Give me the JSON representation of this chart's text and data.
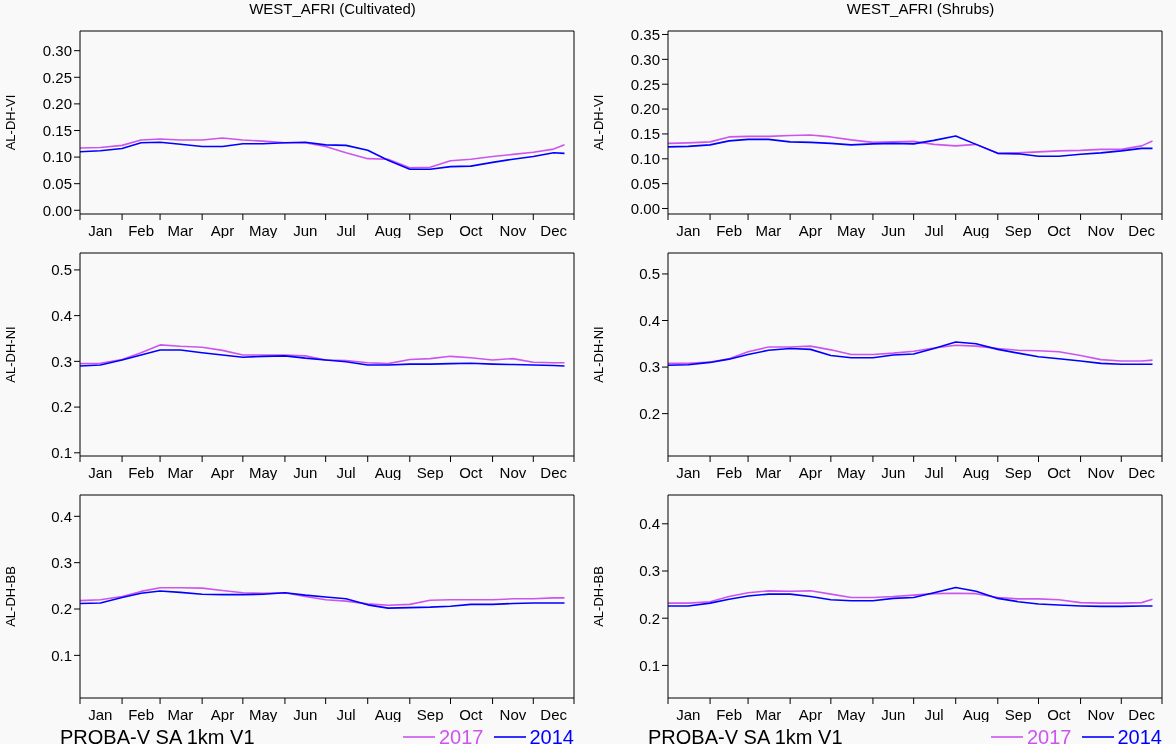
{
  "chart_data": [
    {
      "type": "line",
      "title": "WEST_AFRI (Cultivated)",
      "ylabel": "AL-DH-VI",
      "x": [
        "--01-01",
        "--01-16",
        "--02-01",
        "--02-15",
        "--03-01",
        "--03-16",
        "--04-01",
        "--04-16",
        "--05-01",
        "--05-16",
        "--06-01",
        "--06-16",
        "--07-01",
        "--07-16",
        "--08-01",
        "--08-16",
        "--09-01",
        "--09-16",
        "--10-01",
        "--10-16",
        "--11-01",
        "--11-16",
        "--12-01",
        "--12-16",
        "--12-24"
      ],
      "xlim": [
        "--01-01",
        "--12-31"
      ],
      "xticks": [
        {
          "value": "--01-01",
          "label": null
        },
        {
          "value": "--01-16",
          "label": "Jan"
        },
        {
          "value": "--02-01",
          "label": null
        },
        {
          "value": "--02-15",
          "label": "Feb"
        },
        {
          "value": "--03-01",
          "label": null
        },
        {
          "value": "--03-16",
          "label": "Mar"
        },
        {
          "value": "--04-01",
          "label": null
        },
        {
          "value": "--04-16",
          "label": "Apr"
        },
        {
          "value": "--05-01",
          "label": null
        },
        {
          "value": "--05-16",
          "label": "May"
        },
        {
          "value": "--06-01",
          "label": null
        },
        {
          "value": "--06-16",
          "label": "Jun"
        },
        {
          "value": "--07-01",
          "label": null
        },
        {
          "value": "--07-16",
          "label": "Jul"
        },
        {
          "value": "--08-01",
          "label": null
        },
        {
          "value": "--08-16",
          "label": "Aug"
        },
        {
          "value": "--09-01",
          "label": null
        },
        {
          "value": "--09-16",
          "label": "Sep"
        },
        {
          "value": "--10-01",
          "label": null
        },
        {
          "value": "--10-16",
          "label": "Oct"
        },
        {
          "value": "--11-01",
          "label": null
        },
        {
          "value": "--11-16",
          "label": "Nov"
        },
        {
          "value": "--12-01",
          "label": null
        },
        {
          "value": "--12-16",
          "label": "Dec"
        },
        {
          "value": "--12-31",
          "label": null
        }
      ],
      "ylim": [
        -0.007,
        0.337
      ],
      "yticks": [
        {
          "value": 0,
          "label": "0.00"
        },
        {
          "value": 0.05,
          "label": "0.05"
        },
        {
          "value": 0.1,
          "label": "0.10"
        },
        {
          "value": 0.15,
          "label": "0.15"
        },
        {
          "value": 0.2,
          "label": "0.20"
        },
        {
          "value": 0.25,
          "label": "0.25"
        },
        {
          "value": 0.3,
          "label": "0.30"
        }
      ],
      "series": [
        {
          "color": "#cc55ee",
          "values": [
            0.117,
            0.118,
            0.122,
            0.132,
            0.134,
            0.132,
            0.132,
            0.136,
            0.132,
            0.13,
            0.127,
            0.127,
            0.12,
            0.108,
            0.097,
            0.096,
            0.08,
            0.081,
            0.093,
            0.096,
            0.101,
            0.105,
            0.109,
            0.115,
            0.123
          ]
        },
        {
          "color": "#0000ff",
          "values": [
            0.11,
            0.112,
            0.116,
            0.127,
            0.128,
            0.124,
            0.12,
            0.12,
            0.125,
            0.125,
            0.127,
            0.128,
            0.123,
            0.122,
            0.113,
            0.094,
            0.077,
            0.077,
            0.082,
            0.083,
            0.09,
            0.096,
            0.101,
            0.108,
            0.107
          ]
        }
      ]
    },
    {
      "type": "line",
      "title": "WEST_AFRI (Shrubs)",
      "ylabel": "AL-DH-VI",
      "x": [
        "--01-01",
        "--01-16",
        "--02-01",
        "--02-15",
        "--03-01",
        "--03-16",
        "--04-01",
        "--04-16",
        "--05-01",
        "--05-16",
        "--06-01",
        "--06-16",
        "--07-01",
        "--07-16",
        "--08-01",
        "--08-16",
        "--09-01",
        "--09-16",
        "--10-01",
        "--10-16",
        "--11-01",
        "--11-16",
        "--12-01",
        "--12-16",
        "--12-24"
      ],
      "xlim": [
        "--01-01",
        "--12-31"
      ],
      "xticks": [
        {
          "value": "--01-01",
          "label": null
        },
        {
          "value": "--01-16",
          "label": "Jan"
        },
        {
          "value": "--02-01",
          "label": null
        },
        {
          "value": "--02-15",
          "label": "Feb"
        },
        {
          "value": "--03-01",
          "label": null
        },
        {
          "value": "--03-16",
          "label": "Mar"
        },
        {
          "value": "--04-01",
          "label": null
        },
        {
          "value": "--04-16",
          "label": "Apr"
        },
        {
          "value": "--05-01",
          "label": null
        },
        {
          "value": "--05-16",
          "label": "May"
        },
        {
          "value": "--06-01",
          "label": null
        },
        {
          "value": "--06-16",
          "label": "Jun"
        },
        {
          "value": "--07-01",
          "label": null
        },
        {
          "value": "--07-16",
          "label": "Jul"
        },
        {
          "value": "--08-01",
          "label": null
        },
        {
          "value": "--08-16",
          "label": "Aug"
        },
        {
          "value": "--09-01",
          "label": null
        },
        {
          "value": "--09-16",
          "label": "Sep"
        },
        {
          "value": "--10-01",
          "label": null
        },
        {
          "value": "--10-16",
          "label": "Oct"
        },
        {
          "value": "--11-01",
          "label": null
        },
        {
          "value": "--11-16",
          "label": "Nov"
        },
        {
          "value": "--12-01",
          "label": null
        },
        {
          "value": "--12-16",
          "label": "Dec"
        },
        {
          "value": "--12-31",
          "label": null
        }
      ],
      "ylim": [
        -0.011,
        0.357
      ],
      "yticks": [
        {
          "value": 0,
          "label": "0.00"
        },
        {
          "value": 0.05,
          "label": "0.05"
        },
        {
          "value": 0.1,
          "label": "0.10"
        },
        {
          "value": 0.15,
          "label": "0.15"
        },
        {
          "value": 0.2,
          "label": "0.20"
        },
        {
          "value": 0.25,
          "label": "0.25"
        },
        {
          "value": 0.3,
          "label": "0.30"
        },
        {
          "value": 0.35,
          "label": "0.35"
        }
      ],
      "series": [
        {
          "color": "#cc55ee",
          "values": [
            0.131,
            0.132,
            0.134,
            0.144,
            0.145,
            0.145,
            0.147,
            0.148,
            0.144,
            0.138,
            0.133,
            0.134,
            0.135,
            0.129,
            0.126,
            0.129,
            0.111,
            0.112,
            0.114,
            0.116,
            0.117,
            0.119,
            0.119,
            0.126,
            0.136
          ]
        },
        {
          "color": "#0000ff",
          "values": [
            0.124,
            0.125,
            0.128,
            0.136,
            0.139,
            0.139,
            0.134,
            0.133,
            0.131,
            0.128,
            0.13,
            0.131,
            0.13,
            0.137,
            0.146,
            0.129,
            0.111,
            0.11,
            0.105,
            0.105,
            0.109,
            0.112,
            0.116,
            0.121,
            0.121
          ]
        }
      ]
    },
    {
      "type": "line",
      "ylabel": "AL-DH-NI",
      "x": [
        "--01-01",
        "--01-16",
        "--02-01",
        "--02-15",
        "--03-01",
        "--03-16",
        "--04-01",
        "--04-16",
        "--05-01",
        "--05-16",
        "--06-01",
        "--06-16",
        "--07-01",
        "--07-16",
        "--08-01",
        "--08-16",
        "--09-01",
        "--09-16",
        "--10-01",
        "--10-16",
        "--11-01",
        "--11-16",
        "--12-01",
        "--12-16",
        "--12-24"
      ],
      "xlim": [
        "--01-01",
        "--12-31"
      ],
      "xticks": [
        {
          "value": "--01-01",
          "label": null
        },
        {
          "value": "--01-16",
          "label": "Jan"
        },
        {
          "value": "--02-01",
          "label": null
        },
        {
          "value": "--02-15",
          "label": "Feb"
        },
        {
          "value": "--03-01",
          "label": null
        },
        {
          "value": "--03-16",
          "label": "Mar"
        },
        {
          "value": "--04-01",
          "label": null
        },
        {
          "value": "--04-16",
          "label": "Apr"
        },
        {
          "value": "--05-01",
          "label": null
        },
        {
          "value": "--05-16",
          "label": "May"
        },
        {
          "value": "--06-01",
          "label": null
        },
        {
          "value": "--06-16",
          "label": "Jun"
        },
        {
          "value": "--07-01",
          "label": null
        },
        {
          "value": "--07-16",
          "label": "Jul"
        },
        {
          "value": "--08-01",
          "label": null
        },
        {
          "value": "--08-16",
          "label": "Aug"
        },
        {
          "value": "--09-01",
          "label": null
        },
        {
          "value": "--09-16",
          "label": "Sep"
        },
        {
          "value": "--10-01",
          "label": null
        },
        {
          "value": "--10-16",
          "label": "Oct"
        },
        {
          "value": "--11-01",
          "label": null
        },
        {
          "value": "--11-16",
          "label": "Nov"
        },
        {
          "value": "--12-01",
          "label": null
        },
        {
          "value": "--12-16",
          "label": "Dec"
        },
        {
          "value": "--12-31",
          "label": null
        }
      ],
      "ylim": [
        0.093,
        0.537
      ],
      "yticks": [
        0.1,
        0.2,
        0.3,
        0.4,
        0.5
      ],
      "series": [
        {
          "color": "#cc55ee",
          "values": [
            0.295,
            0.296,
            0.304,
            0.319,
            0.336,
            0.333,
            0.331,
            0.324,
            0.314,
            0.314,
            0.314,
            0.312,
            0.303,
            0.302,
            0.297,
            0.295,
            0.304,
            0.306,
            0.311,
            0.308,
            0.303,
            0.306,
            0.298,
            0.297,
            0.297
          ]
        },
        {
          "color": "#0000ff",
          "values": [
            0.29,
            0.292,
            0.303,
            0.314,
            0.325,
            0.325,
            0.319,
            0.314,
            0.309,
            0.311,
            0.312,
            0.307,
            0.303,
            0.299,
            0.292,
            0.292,
            0.294,
            0.294,
            0.295,
            0.296,
            0.294,
            0.293,
            0.292,
            0.291,
            0.29
          ]
        }
      ]
    },
    {
      "type": "line",
      "ylabel": "AL-DH-NI",
      "x": [
        "--01-01",
        "--01-16",
        "--02-01",
        "--02-15",
        "--03-01",
        "--03-16",
        "--04-01",
        "--04-16",
        "--05-01",
        "--05-16",
        "--06-01",
        "--06-16",
        "--07-01",
        "--07-16",
        "--08-01",
        "--08-16",
        "--09-01",
        "--09-16",
        "--10-01",
        "--10-16",
        "--11-01",
        "--11-16",
        "--12-01",
        "--12-16",
        "--12-24"
      ],
      "xlim": [
        "--01-01",
        "--12-31"
      ],
      "xticks": [
        {
          "value": "--01-01",
          "label": null
        },
        {
          "value": "--01-16",
          "label": "Jan"
        },
        {
          "value": "--02-01",
          "label": null
        },
        {
          "value": "--02-15",
          "label": "Feb"
        },
        {
          "value": "--03-01",
          "label": null
        },
        {
          "value": "--03-16",
          "label": "Mar"
        },
        {
          "value": "--04-01",
          "label": null
        },
        {
          "value": "--04-16",
          "label": "Apr"
        },
        {
          "value": "--05-01",
          "label": null
        },
        {
          "value": "--05-16",
          "label": "May"
        },
        {
          "value": "--06-01",
          "label": null
        },
        {
          "value": "--06-16",
          "label": "Jun"
        },
        {
          "value": "--07-01",
          "label": null
        },
        {
          "value": "--07-16",
          "label": "Jul"
        },
        {
          "value": "--08-01",
          "label": null
        },
        {
          "value": "--08-16",
          "label": "Aug"
        },
        {
          "value": "--09-01",
          "label": null
        },
        {
          "value": "--09-16",
          "label": "Sep"
        },
        {
          "value": "--10-01",
          "label": null
        },
        {
          "value": "--10-16",
          "label": "Oct"
        },
        {
          "value": "--11-01",
          "label": null
        },
        {
          "value": "--11-16",
          "label": "Nov"
        },
        {
          "value": "--12-01",
          "label": null
        },
        {
          "value": "--12-16",
          "label": "Dec"
        },
        {
          "value": "--12-31",
          "label": null
        }
      ],
      "ylim": [
        0.109,
        0.545
      ],
      "yticks": [
        0.2,
        0.3,
        0.4,
        0.5
      ],
      "series": [
        {
          "color": "#cc55ee",
          "values": [
            0.308,
            0.308,
            0.311,
            0.318,
            0.333,
            0.343,
            0.343,
            0.345,
            0.337,
            0.327,
            0.327,
            0.33,
            0.334,
            0.341,
            0.347,
            0.345,
            0.34,
            0.336,
            0.335,
            0.333,
            0.325,
            0.316,
            0.313,
            0.313,
            0.315
          ]
        },
        {
          "color": "#0000ff",
          "values": [
            0.304,
            0.305,
            0.31,
            0.317,
            0.327,
            0.336,
            0.34,
            0.338,
            0.325,
            0.32,
            0.32,
            0.326,
            0.328,
            0.34,
            0.354,
            0.35,
            0.338,
            0.33,
            0.322,
            0.318,
            0.313,
            0.308,
            0.306,
            0.306,
            0.306
          ]
        }
      ]
    },
    {
      "type": "line",
      "ylabel": "AL-DH-BB",
      "legend": "bottom right",
      "annotations": [
        "PROBA-V SA 1km V1"
      ],
      "x": [
        "--01-01",
        "--01-16",
        "--02-01",
        "--02-15",
        "--03-01",
        "--03-16",
        "--04-01",
        "--04-16",
        "--05-01",
        "--05-16",
        "--06-01",
        "--06-16",
        "--07-01",
        "--07-16",
        "--08-01",
        "--08-16",
        "--09-01",
        "--09-16",
        "--10-01",
        "--10-16",
        "--11-01",
        "--11-16",
        "--12-01",
        "--12-16",
        "--12-24"
      ],
      "xlim": [
        "--01-01",
        "--12-31"
      ],
      "xticks": [
        {
          "value": "--01-01",
          "label": null
        },
        {
          "value": "--01-16",
          "label": "Jan"
        },
        {
          "value": "--02-01",
          "label": null
        },
        {
          "value": "--02-15",
          "label": "Feb"
        },
        {
          "value": "--03-01",
          "label": null
        },
        {
          "value": "--03-16",
          "label": "Mar"
        },
        {
          "value": "--04-01",
          "label": null
        },
        {
          "value": "--04-16",
          "label": "Apr"
        },
        {
          "value": "--05-01",
          "label": null
        },
        {
          "value": "--05-16",
          "label": "May"
        },
        {
          "value": "--06-01",
          "label": null
        },
        {
          "value": "--06-16",
          "label": "Jun"
        },
        {
          "value": "--07-01",
          "label": null
        },
        {
          "value": "--07-16",
          "label": "Jul"
        },
        {
          "value": "--08-01",
          "label": null
        },
        {
          "value": "--08-16",
          "label": "Aug"
        },
        {
          "value": "--09-01",
          "label": null
        },
        {
          "value": "--09-16",
          "label": "Sep"
        },
        {
          "value": "--10-01",
          "label": null
        },
        {
          "value": "--10-16",
          "label": "Oct"
        },
        {
          "value": "--11-01",
          "label": null
        },
        {
          "value": "--11-16",
          "label": "Nov"
        },
        {
          "value": "--12-01",
          "label": null
        },
        {
          "value": "--12-16",
          "label": "Dec"
        },
        {
          "value": "--12-31",
          "label": null
        }
      ],
      "ylim": [
        0.008,
        0.446
      ],
      "yticks": [
        0.1,
        0.2,
        0.3,
        0.4
      ],
      "series": [
        {
          "name": "2017",
          "color": "#cc55ee",
          "values": [
            0.218,
            0.22,
            0.227,
            0.238,
            0.246,
            0.246,
            0.245,
            0.24,
            0.235,
            0.234,
            0.235,
            0.227,
            0.22,
            0.217,
            0.211,
            0.208,
            0.21,
            0.219,
            0.22,
            0.22,
            0.22,
            0.222,
            0.222,
            0.224,
            0.224
          ]
        },
        {
          "name": "2014",
          "color": "#0000ff",
          "values": [
            0.212,
            0.213,
            0.225,
            0.234,
            0.239,
            0.236,
            0.232,
            0.231,
            0.231,
            0.232,
            0.235,
            0.23,
            0.226,
            0.222,
            0.209,
            0.202,
            0.203,
            0.204,
            0.206,
            0.21,
            0.21,
            0.212,
            0.213,
            0.213,
            0.213
          ]
        }
      ]
    },
    {
      "type": "line",
      "ylabel": "AL-DH-BB",
      "legend": "bottom right",
      "annotations": [
        "PROBA-V SA 1km V1"
      ],
      "x": [
        "--01-01",
        "--01-16",
        "--02-01",
        "--02-15",
        "--03-01",
        "--03-16",
        "--04-01",
        "--04-16",
        "--05-01",
        "--05-16",
        "--06-01",
        "--06-16",
        "--07-01",
        "--07-16",
        "--08-01",
        "--08-16",
        "--09-01",
        "--09-16",
        "--10-01",
        "--10-16",
        "--11-01",
        "--11-16",
        "--12-01",
        "--12-16",
        "--12-24"
      ],
      "xlim": [
        "--01-01",
        "--12-31"
      ],
      "xticks": [
        {
          "value": "--01-01",
          "label": null
        },
        {
          "value": "--01-16",
          "label": "Jan"
        },
        {
          "value": "--02-01",
          "label": null
        },
        {
          "value": "--02-15",
          "label": "Feb"
        },
        {
          "value": "--03-01",
          "label": null
        },
        {
          "value": "--03-16",
          "label": "Mar"
        },
        {
          "value": "--04-01",
          "label": null
        },
        {
          "value": "--04-16",
          "label": "Apr"
        },
        {
          "value": "--05-01",
          "label": null
        },
        {
          "value": "--05-16",
          "label": "May"
        },
        {
          "value": "--06-01",
          "label": null
        },
        {
          "value": "--06-16",
          "label": "Jun"
        },
        {
          "value": "--07-01",
          "label": null
        },
        {
          "value": "--07-16",
          "label": "Jul"
        },
        {
          "value": "--08-01",
          "label": null
        },
        {
          "value": "--08-16",
          "label": "Aug"
        },
        {
          "value": "--09-01",
          "label": null
        },
        {
          "value": "--09-16",
          "label": "Sep"
        },
        {
          "value": "--10-01",
          "label": null
        },
        {
          "value": "--10-16",
          "label": "Oct"
        },
        {
          "value": "--11-01",
          "label": null
        },
        {
          "value": "--11-16",
          "label": "Nov"
        },
        {
          "value": "--12-01",
          "label": null
        },
        {
          "value": "--12-16",
          "label": "Dec"
        },
        {
          "value": "--12-31",
          "label": null
        }
      ],
      "ylim": [
        0.031,
        0.461
      ],
      "yticks": [
        0.1,
        0.2,
        0.3,
        0.4
      ],
      "series": [
        {
          "name": "2017",
          "color": "#cc55ee",
          "values": [
            0.232,
            0.232,
            0.235,
            0.246,
            0.254,
            0.258,
            0.257,
            0.258,
            0.251,
            0.244,
            0.244,
            0.246,
            0.249,
            0.252,
            0.253,
            0.252,
            0.244,
            0.241,
            0.241,
            0.239,
            0.233,
            0.232,
            0.232,
            0.233,
            0.24
          ]
        },
        {
          "name": "2014",
          "color": "#0000ff",
          "values": [
            0.226,
            0.226,
            0.232,
            0.24,
            0.247,
            0.251,
            0.251,
            0.246,
            0.239,
            0.237,
            0.237,
            0.242,
            0.244,
            0.254,
            0.265,
            0.257,
            0.242,
            0.235,
            0.23,
            0.228,
            0.226,
            0.225,
            0.225,
            0.226,
            0.226
          ]
        }
      ]
    }
  ]
}
